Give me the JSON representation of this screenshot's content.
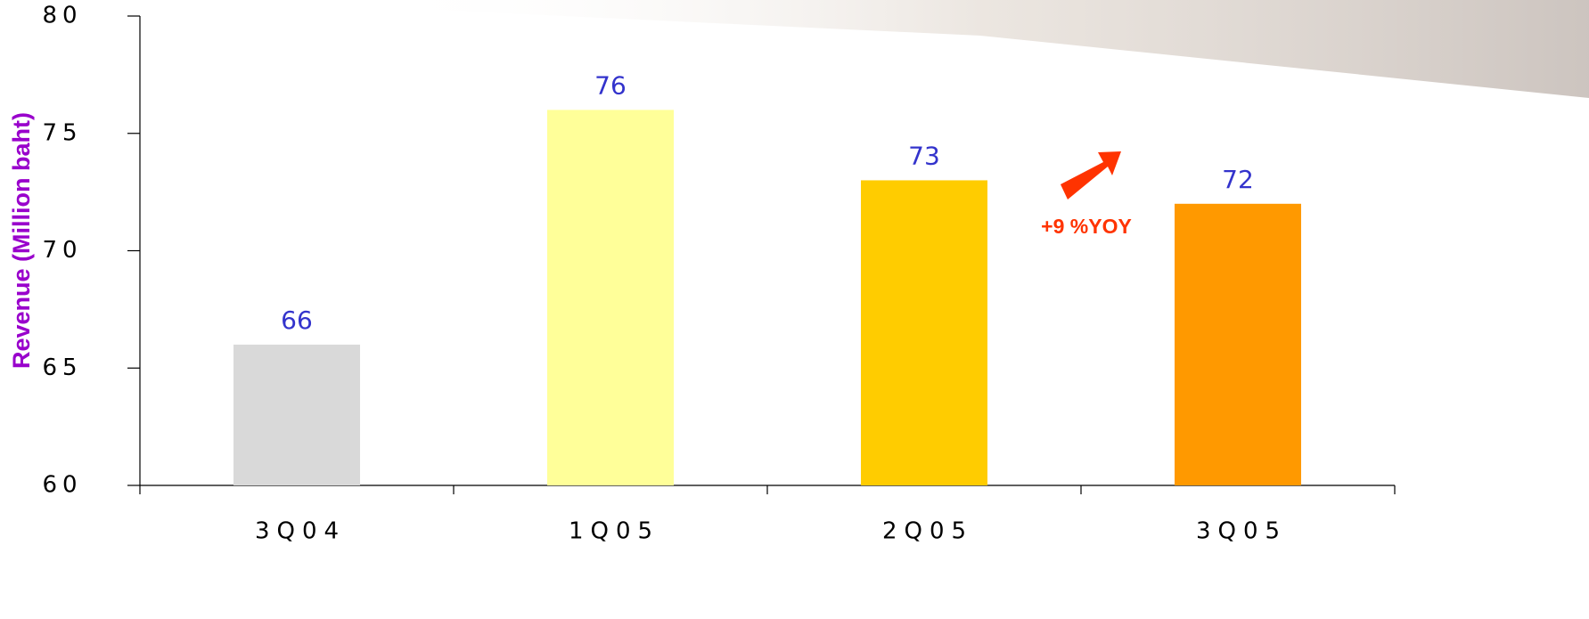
{
  "chart_data": {
    "type": "bar",
    "y_label": "Revenue (Million baht)",
    "categories": [
      "3Q04",
      "1Q05",
      "2Q05",
      "3Q05"
    ],
    "values": [
      66,
      76,
      73,
      72
    ],
    "colors": [
      "#d9d9d9",
      "#ffff99",
      "#ffcc00",
      "#ff9900"
    ],
    "ylim": [
      60,
      80
    ],
    "yticks": [
      60,
      65,
      70,
      75,
      80
    ],
    "annotation": "+9 %YOY"
  }
}
